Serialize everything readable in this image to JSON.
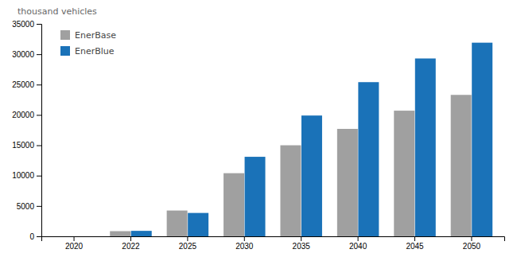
{
  "chart_data": {
    "type": "bar",
    "y_label": "thousand vehicles",
    "categories": [
      "2020",
      "2022",
      "2025",
      "2030",
      "2035",
      "2040",
      "2045",
      "2050"
    ],
    "series": [
      {
        "name": "EnerBase",
        "color": "#a0a0a0",
        "values": [
          0,
          850,
          4250,
          10400,
          15000,
          17700,
          20700,
          23300
        ]
      },
      {
        "name": "EnerBlue",
        "color": "#1a72b8",
        "values": [
          0,
          900,
          3850,
          13100,
          19900,
          25400,
          29300,
          31900
        ]
      }
    ],
    "ylim": [
      0,
      35000
    ],
    "yticks": [
      0,
      5000,
      10000,
      15000,
      20000,
      25000,
      30000,
      35000
    ],
    "grid": false,
    "legend": "upper left"
  }
}
